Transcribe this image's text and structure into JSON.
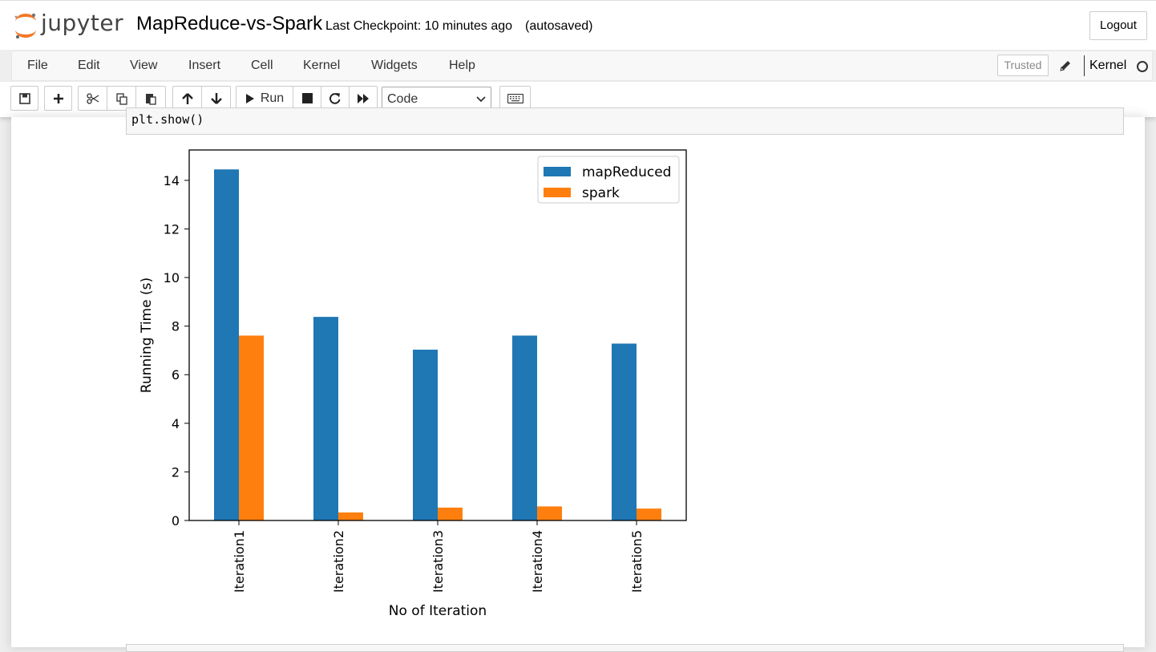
{
  "header": {
    "logo_text": "jupyter",
    "notebook_title": "MapReduce-vs-Spark",
    "checkpoint": "Last Checkpoint: 10 minutes ago",
    "autosave": "(autosaved)",
    "logout_label": "Logout"
  },
  "menubar": {
    "items": [
      "File",
      "Edit",
      "View",
      "Insert",
      "Cell",
      "Kernel",
      "Widgets",
      "Help"
    ],
    "trusted_label": "Trusted",
    "kernel_label": "Kernel"
  },
  "toolbar": {
    "run_label": "Run",
    "cell_type": "Code",
    "icons": [
      "save-icon",
      "plus-icon",
      "cut-icon",
      "copy-icon",
      "paste-icon",
      "arrow-up-icon",
      "arrow-down-icon",
      "play-icon",
      "stop-icon",
      "restart-icon",
      "fast-forward-icon",
      "keyboard-icon"
    ]
  },
  "cell": {
    "code": "plt.show()"
  },
  "colors": {
    "mapReduced": "#1f77b4",
    "spark": "#ff7f0e"
  },
  "chart_data": {
    "type": "bar",
    "categories": [
      "Iteration1",
      "Iteration2",
      "Iteration3",
      "Iteration4",
      "Iteration5"
    ],
    "series": [
      {
        "name": "mapReduced",
        "values": [
          14.45,
          8.38,
          7.03,
          7.61,
          7.28
        ]
      },
      {
        "name": "spark",
        "values": [
          7.61,
          0.33,
          0.53,
          0.58,
          0.49
        ]
      }
    ],
    "xlabel": "No of Iteration",
    "ylabel": "Running Time (s)",
    "ylim": [
      0,
      15.25
    ],
    "yticks": [
      0,
      2,
      4,
      6,
      8,
      10,
      12,
      14
    ],
    "legend_position": "top-right",
    "grid": false
  }
}
